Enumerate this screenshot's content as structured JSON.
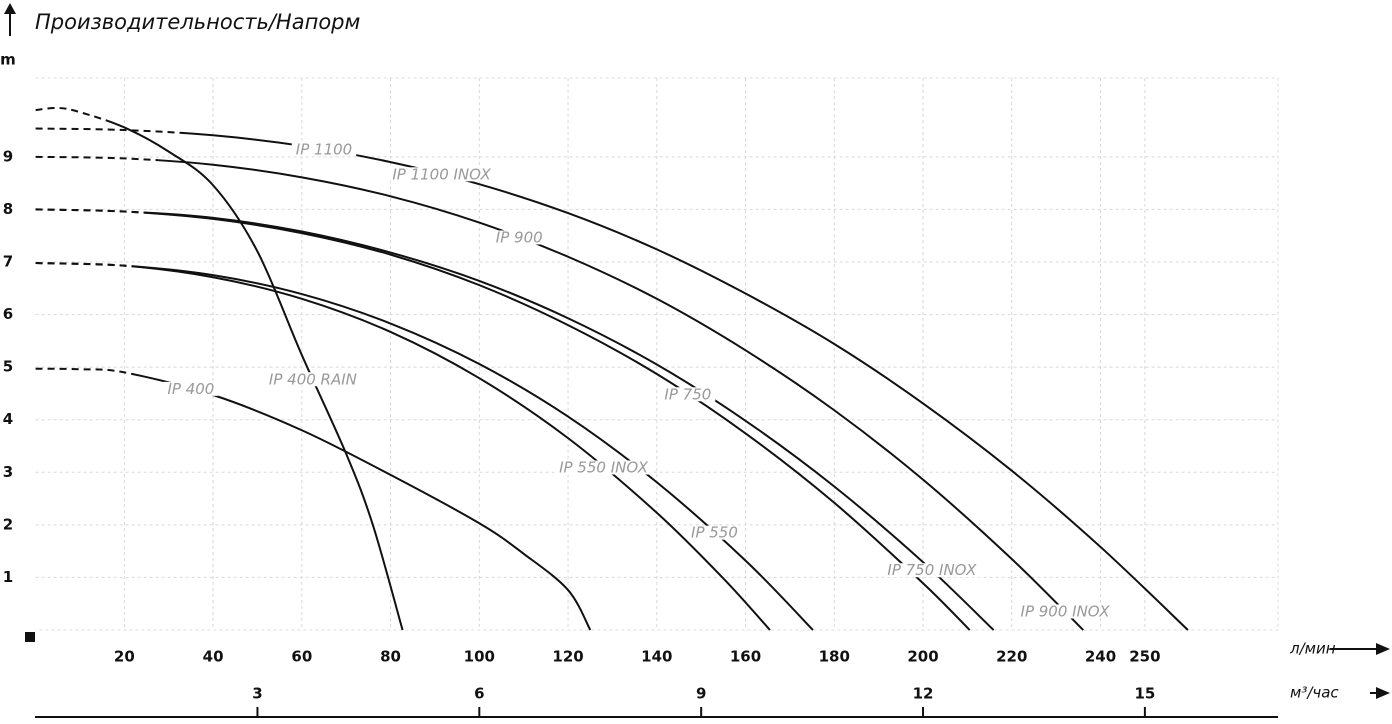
{
  "chart_data": {
    "type": "line",
    "title": "Производительность/Напорм",
    "y_label": "m",
    "x_label": "л/мин",
    "x2_label": "м³/час",
    "xlim": [
      0,
      280
    ],
    "xticks": [
      20,
      40,
      60,
      80,
      100,
      120,
      140,
      160,
      180,
      200,
      220,
      240,
      250
    ],
    "x2lim": [
      0,
      16.8
    ],
    "x2ticks": [
      3,
      6,
      9,
      12,
      15
    ],
    "ylim": [
      0,
      10.5
    ],
    "yticks": [
      1,
      2,
      3,
      4,
      5,
      6,
      7,
      8,
      9
    ],
    "grid": true,
    "color": "#111111",
    "label_color": "#999999",
    "series": [
      {
        "x": [
          0,
          20,
          40,
          60,
          80,
          100,
          120,
          140,
          160,
          180,
          200,
          220,
          240,
          259.7
        ],
        "values": [
          9.54,
          9.51,
          9.41,
          9.21,
          8.9,
          8.48,
          7.93,
          7.24,
          6.4,
          5.44,
          4.31,
          3.03,
          1.58,
          0
        ],
        "dashed_to": 35,
        "labels": [
          {
            "text": "IP 1100",
            "x": 65
          },
          {
            "text": "IP 1100 INOX",
            "x": 91.5
          }
        ]
      },
      {
        "x": [
          0,
          20,
          40,
          60,
          80,
          100,
          120,
          140,
          160,
          180,
          200,
          220,
          236.1
        ],
        "values": [
          9,
          8.97,
          8.85,
          8.61,
          8.25,
          7.75,
          7.1,
          6.3,
          5.32,
          4.18,
          2.86,
          1.35,
          0
        ],
        "dashed_to": 28,
        "labels": [
          {
            "text": "IP 900",
            "x": 109
          },
          {
            "text": "IP 900 INOX",
            "x": 232
          }
        ]
      },
      {
        "x": [
          0,
          20,
          40,
          60,
          80,
          100,
          120,
          140,
          160,
          180,
          200,
          215.9
        ],
        "values": [
          8,
          7.96,
          7.84,
          7.58,
          7.18,
          6.64,
          5.93,
          5.05,
          3.98,
          2.73,
          1.29,
          0
        ],
        "dashed_to": 27,
        "labels": [
          {
            "text": "IP 750 INOX",
            "x": 202
          }
        ]
      },
      {
        "x": [
          0,
          20,
          40,
          60,
          80,
          100,
          120,
          140,
          160,
          180,
          200,
          210.5
        ],
        "values": [
          8,
          7.96,
          7.82,
          7.55,
          7.14,
          6.56,
          5.8,
          4.87,
          3.74,
          2.42,
          0.89,
          0
        ],
        "dashed_to": 27,
        "labels": [
          {
            "text": "IP 750",
            "x": 147
          }
        ]
      },
      {
        "x": [
          0,
          20,
          40,
          60,
          80,
          100,
          120,
          140,
          160,
          175.2
        ],
        "values": [
          6.98,
          6.93,
          6.75,
          6.39,
          5.83,
          5.06,
          4.06,
          2.81,
          1.32,
          0
        ],
        "dashed_to": 24,
        "labels": [
          {
            "text": "IP 550",
            "x": 153
          }
        ]
      },
      {
        "x": [
          0,
          20,
          40,
          60,
          80,
          100,
          120,
          140,
          155,
          165.5
        ],
        "values": [
          6.98,
          6.93,
          6.71,
          6.3,
          5.67,
          4.79,
          3.65,
          2.23,
          0.98,
          0
        ],
        "dashed_to": 24,
        "labels": [
          {
            "text": "IP 550 INOX",
            "x": 128
          }
        ]
      },
      {
        "x": [
          0,
          10,
          20,
          40,
          60,
          80,
          100,
          110,
          120,
          125
        ],
        "values": [
          4.97,
          4.96,
          4.9,
          4.47,
          3.8,
          2.95,
          2.03,
          1.45,
          0.76,
          0
        ],
        "dashed_to": 24,
        "labels": [
          {
            "text": "IP 400",
            "x": 35
          }
        ]
      },
      {
        "x": [
          0,
          5,
          10,
          20,
          30,
          40,
          50,
          60,
          70,
          76,
          82.7
        ],
        "values": [
          9.89,
          9.93,
          9.85,
          9.56,
          9.1,
          8.46,
          7.2,
          5.23,
          3.35,
          2.0,
          0
        ],
        "dashed_to": 18,
        "labels": [
          {
            "text": "IP 400 RAIN",
            "x": 62.5
          }
        ]
      }
    ]
  }
}
